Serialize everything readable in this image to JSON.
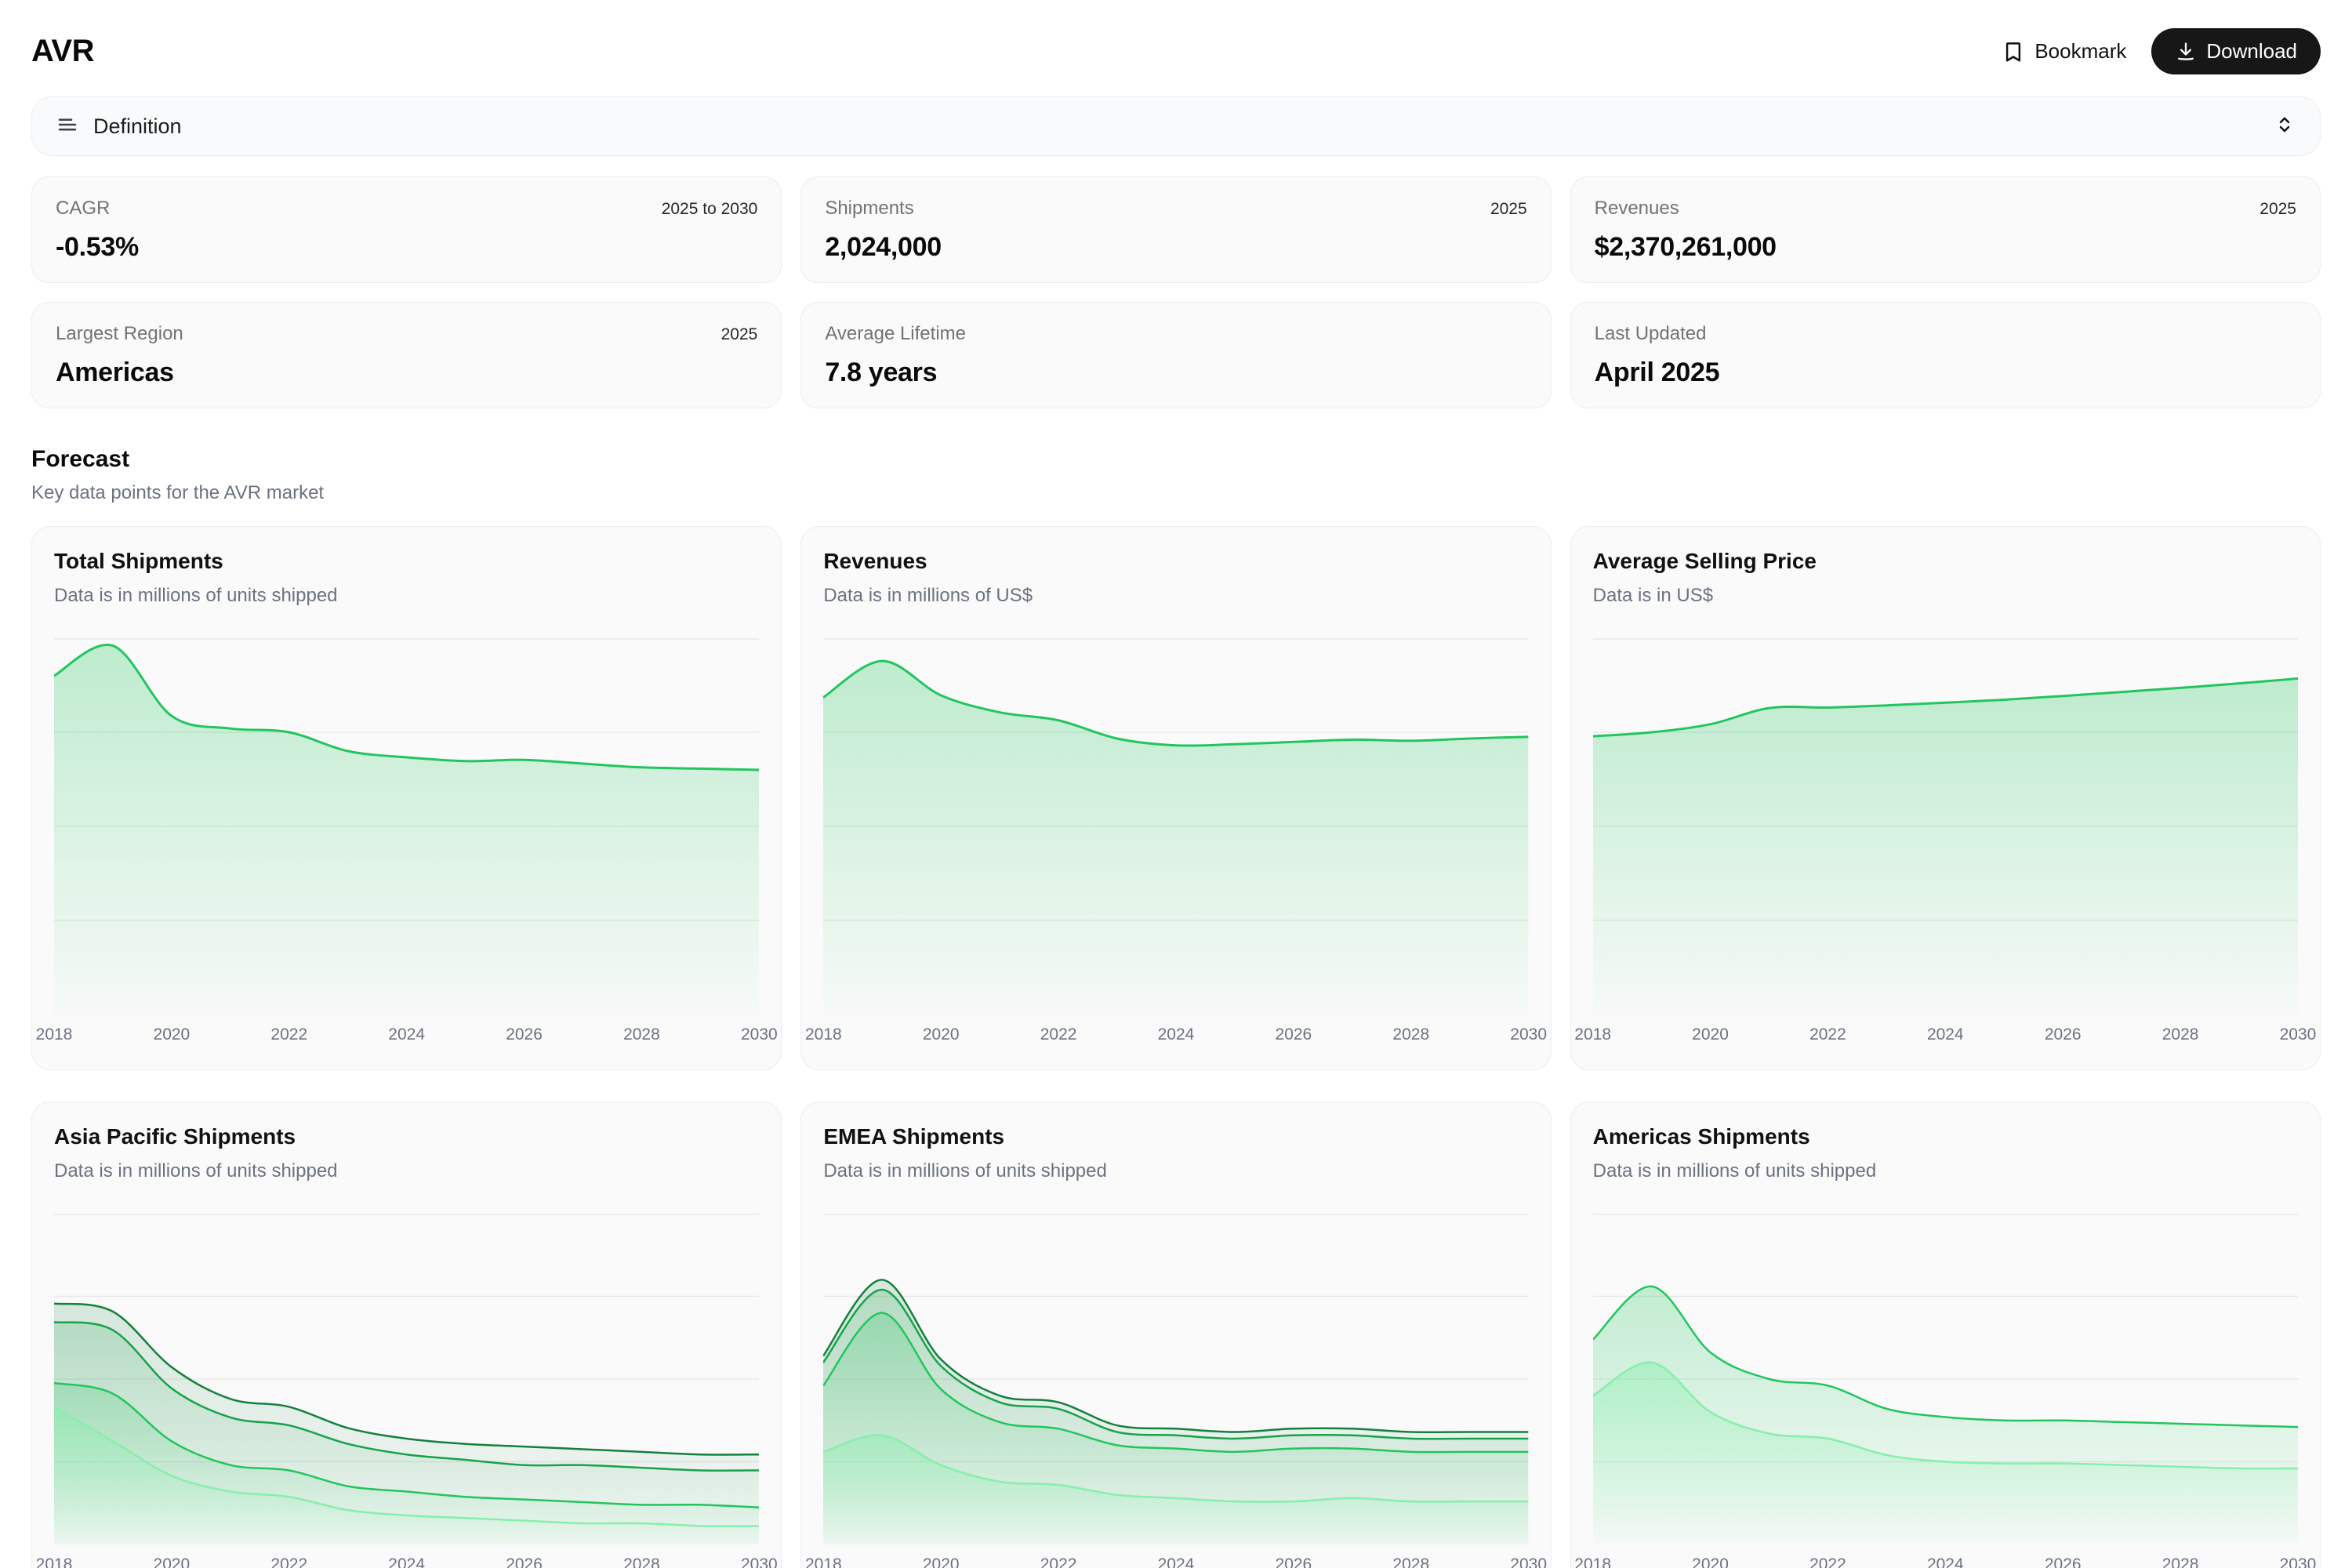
{
  "header": {
    "title": "AVR",
    "bookmark_label": "Bookmark",
    "download_label": "Download"
  },
  "definition_bar": {
    "label": "Definition"
  },
  "stats": {
    "cards": [
      {
        "label": "CAGR",
        "badge": "2025 to 2030",
        "value": "-0.53%"
      },
      {
        "label": "Shipments",
        "badge": "2025",
        "value": "2,024,000"
      },
      {
        "label": "Revenues",
        "badge": "2025",
        "value": "$2,370,261,000"
      },
      {
        "label": "Largest Region",
        "badge": "2025",
        "value": "Americas"
      },
      {
        "label": "Average Lifetime",
        "badge": "",
        "value": "7.8 years"
      },
      {
        "label": "Last Updated",
        "badge": "",
        "value": "April 2025"
      }
    ]
  },
  "forecast": {
    "title": "Forecast",
    "subtitle": "Key data points for the AVR market"
  },
  "colors": {
    "accent_green": "#22c55e",
    "mid_green": "#16a34a",
    "dark_green": "#15803d",
    "pale_green": "#86efac",
    "download_button_bg": "#171717",
    "card_bg": "#fafafa",
    "card_border": "#ececec"
  },
  "chart_data": [
    {
      "type": "area",
      "title": "Total Shipments",
      "subtitle": "Data is in millions of units shipped",
      "x": [
        2018,
        2019,
        2020,
        2021,
        2022,
        2023,
        2024,
        2025,
        2026,
        2027,
        2028,
        2029,
        2030
      ],
      "x_ticks": [
        "2018",
        "2020",
        "2022",
        "2024",
        "2026",
        "2028",
        "2030"
      ],
      "ylim": [
        0,
        3
      ],
      "grid": true,
      "legend": "none",
      "series": [
        {
          "name": "Total Shipments",
          "color": "#22c55e",
          "fill_alpha": 0.28,
          "values": [
            2.7,
            2.94,
            2.38,
            2.28,
            2.25,
            2.1,
            2.05,
            2.02,
            2.03,
            2.0,
            1.97,
            1.96,
            1.95
          ]
        }
      ]
    },
    {
      "type": "area",
      "title": "Revenues",
      "subtitle": "Data is in millions of US$",
      "x": [
        2018,
        2019,
        2020,
        2021,
        2022,
        2023,
        2024,
        2025,
        2026,
        2027,
        2028,
        2029,
        2030
      ],
      "x_ticks": [
        "2018",
        "2020",
        "2022",
        "2024",
        "2026",
        "2028",
        "2030"
      ],
      "ylim": [
        0,
        3300
      ],
      "grid": true,
      "legend": "none",
      "series": [
        {
          "name": "Revenues",
          "color": "#22c55e",
          "fill_alpha": 0.28,
          "values": [
            2780,
            3100,
            2800,
            2650,
            2580,
            2420,
            2360,
            2370,
            2390,
            2410,
            2400,
            2420,
            2435
          ]
        }
      ]
    },
    {
      "type": "area",
      "title": "Average Selling Price",
      "subtitle": "Data is in US$",
      "x": [
        2018,
        2019,
        2020,
        2021,
        2022,
        2023,
        2024,
        2025,
        2026,
        2027,
        2028,
        2029,
        2030
      ],
      "x_ticks": [
        "2018",
        "2020",
        "2022",
        "2024",
        "2026",
        "2028",
        "2030"
      ],
      "ylim": [
        0,
        1400
      ],
      "grid": true,
      "legend": "none",
      "series": [
        {
          "name": "Average Selling Price",
          "color": "#22c55e",
          "fill_alpha": 0.28,
          "values": [
            1035,
            1050,
            1080,
            1140,
            1142,
            1150,
            1160,
            1171,
            1185,
            1200,
            1215,
            1232,
            1250
          ]
        }
      ]
    },
    {
      "type": "area",
      "title": "Asia Pacific Shipments",
      "subtitle": "Data is in millions of units shipped",
      "x": [
        2018,
        2019,
        2020,
        2021,
        2022,
        2023,
        2024,
        2025,
        2026,
        2027,
        2028,
        2029,
        2030
      ],
      "x_ticks": [
        "2018",
        "2020",
        "2022",
        "2024",
        "2026",
        "2028",
        "2030"
      ],
      "ylim": [
        0,
        1.25
      ],
      "grid": true,
      "legend": "none",
      "series": [
        {
          "name": "series-1",
          "color": "#15803d",
          "fill_alpha": 0.16,
          "values": [
            0.91,
            0.88,
            0.67,
            0.55,
            0.52,
            0.44,
            0.4,
            0.38,
            0.37,
            0.36,
            0.35,
            0.34,
            0.34
          ]
        },
        {
          "name": "series-2",
          "color": "#16a34a",
          "fill_alpha": 0.18,
          "values": [
            0.84,
            0.81,
            0.59,
            0.48,
            0.45,
            0.38,
            0.34,
            0.32,
            0.3,
            0.3,
            0.29,
            0.28,
            0.28
          ]
        },
        {
          "name": "series-3",
          "color": "#22c55e",
          "fill_alpha": 0.22,
          "values": [
            0.61,
            0.57,
            0.39,
            0.3,
            0.28,
            0.22,
            0.2,
            0.18,
            0.17,
            0.16,
            0.15,
            0.15,
            0.14
          ]
        },
        {
          "name": "series-4",
          "color": "#86efac",
          "fill_alpha": 0.45,
          "values": [
            0.52,
            0.39,
            0.26,
            0.2,
            0.18,
            0.13,
            0.11,
            0.1,
            0.09,
            0.08,
            0.08,
            0.07,
            0.07
          ]
        }
      ]
    },
    {
      "type": "area",
      "title": "EMEA Shipments",
      "subtitle": "Data is in millions of units shipped",
      "x": [
        2018,
        2019,
        2020,
        2021,
        2022,
        2023,
        2024,
        2025,
        2026,
        2027,
        2028,
        2029,
        2030
      ],
      "x_ticks": [
        "2018",
        "2020",
        "2022",
        "2024",
        "2026",
        "2028",
        "2030"
      ],
      "ylim": [
        0,
        1
      ],
      "grid": true,
      "legend": "none",
      "series": [
        {
          "name": "series-1",
          "color": "#15803d",
          "fill_alpha": 0.16,
          "values": [
            0.57,
            0.8,
            0.56,
            0.45,
            0.43,
            0.36,
            0.35,
            0.34,
            0.35,
            0.35,
            0.34,
            0.34,
            0.34
          ]
        },
        {
          "name": "series-2",
          "color": "#16a34a",
          "fill_alpha": 0.18,
          "values": [
            0.55,
            0.77,
            0.54,
            0.43,
            0.41,
            0.34,
            0.33,
            0.32,
            0.33,
            0.33,
            0.32,
            0.32,
            0.32
          ]
        },
        {
          "name": "series-3",
          "color": "#22c55e",
          "fill_alpha": 0.22,
          "values": [
            0.48,
            0.7,
            0.47,
            0.37,
            0.35,
            0.3,
            0.29,
            0.28,
            0.29,
            0.29,
            0.28,
            0.28,
            0.28
          ]
        },
        {
          "name": "series-4",
          "color": "#86efac",
          "fill_alpha": 0.45,
          "values": [
            0.28,
            0.33,
            0.24,
            0.19,
            0.18,
            0.15,
            0.14,
            0.13,
            0.13,
            0.14,
            0.13,
            0.13,
            0.13
          ]
        }
      ]
    },
    {
      "type": "area",
      "title": "Americas Shipments",
      "subtitle": "Data is in millions of units shipped",
      "x": [
        2018,
        2019,
        2020,
        2021,
        2022,
        2023,
        2024,
        2025,
        2026,
        2027,
        2028,
        2029,
        2030
      ],
      "x_ticks": [
        "2018",
        "2020",
        "2022",
        "2024",
        "2026",
        "2028",
        "2030"
      ],
      "ylim": [
        0,
        1
      ],
      "grid": true,
      "legend": "none",
      "series": [
        {
          "name": "series-1",
          "color": "#22c55e",
          "fill_alpha": 0.26,
          "values": [
            0.62,
            0.78,
            0.58,
            0.5,
            0.48,
            0.41,
            0.385,
            0.375,
            0.375,
            0.37,
            0.365,
            0.36,
            0.355
          ]
        },
        {
          "name": "series-2",
          "color": "#86efac",
          "fill_alpha": 0.45,
          "values": [
            0.45,
            0.55,
            0.4,
            0.335,
            0.32,
            0.27,
            0.25,
            0.245,
            0.245,
            0.24,
            0.235,
            0.23,
            0.23
          ]
        }
      ]
    }
  ]
}
